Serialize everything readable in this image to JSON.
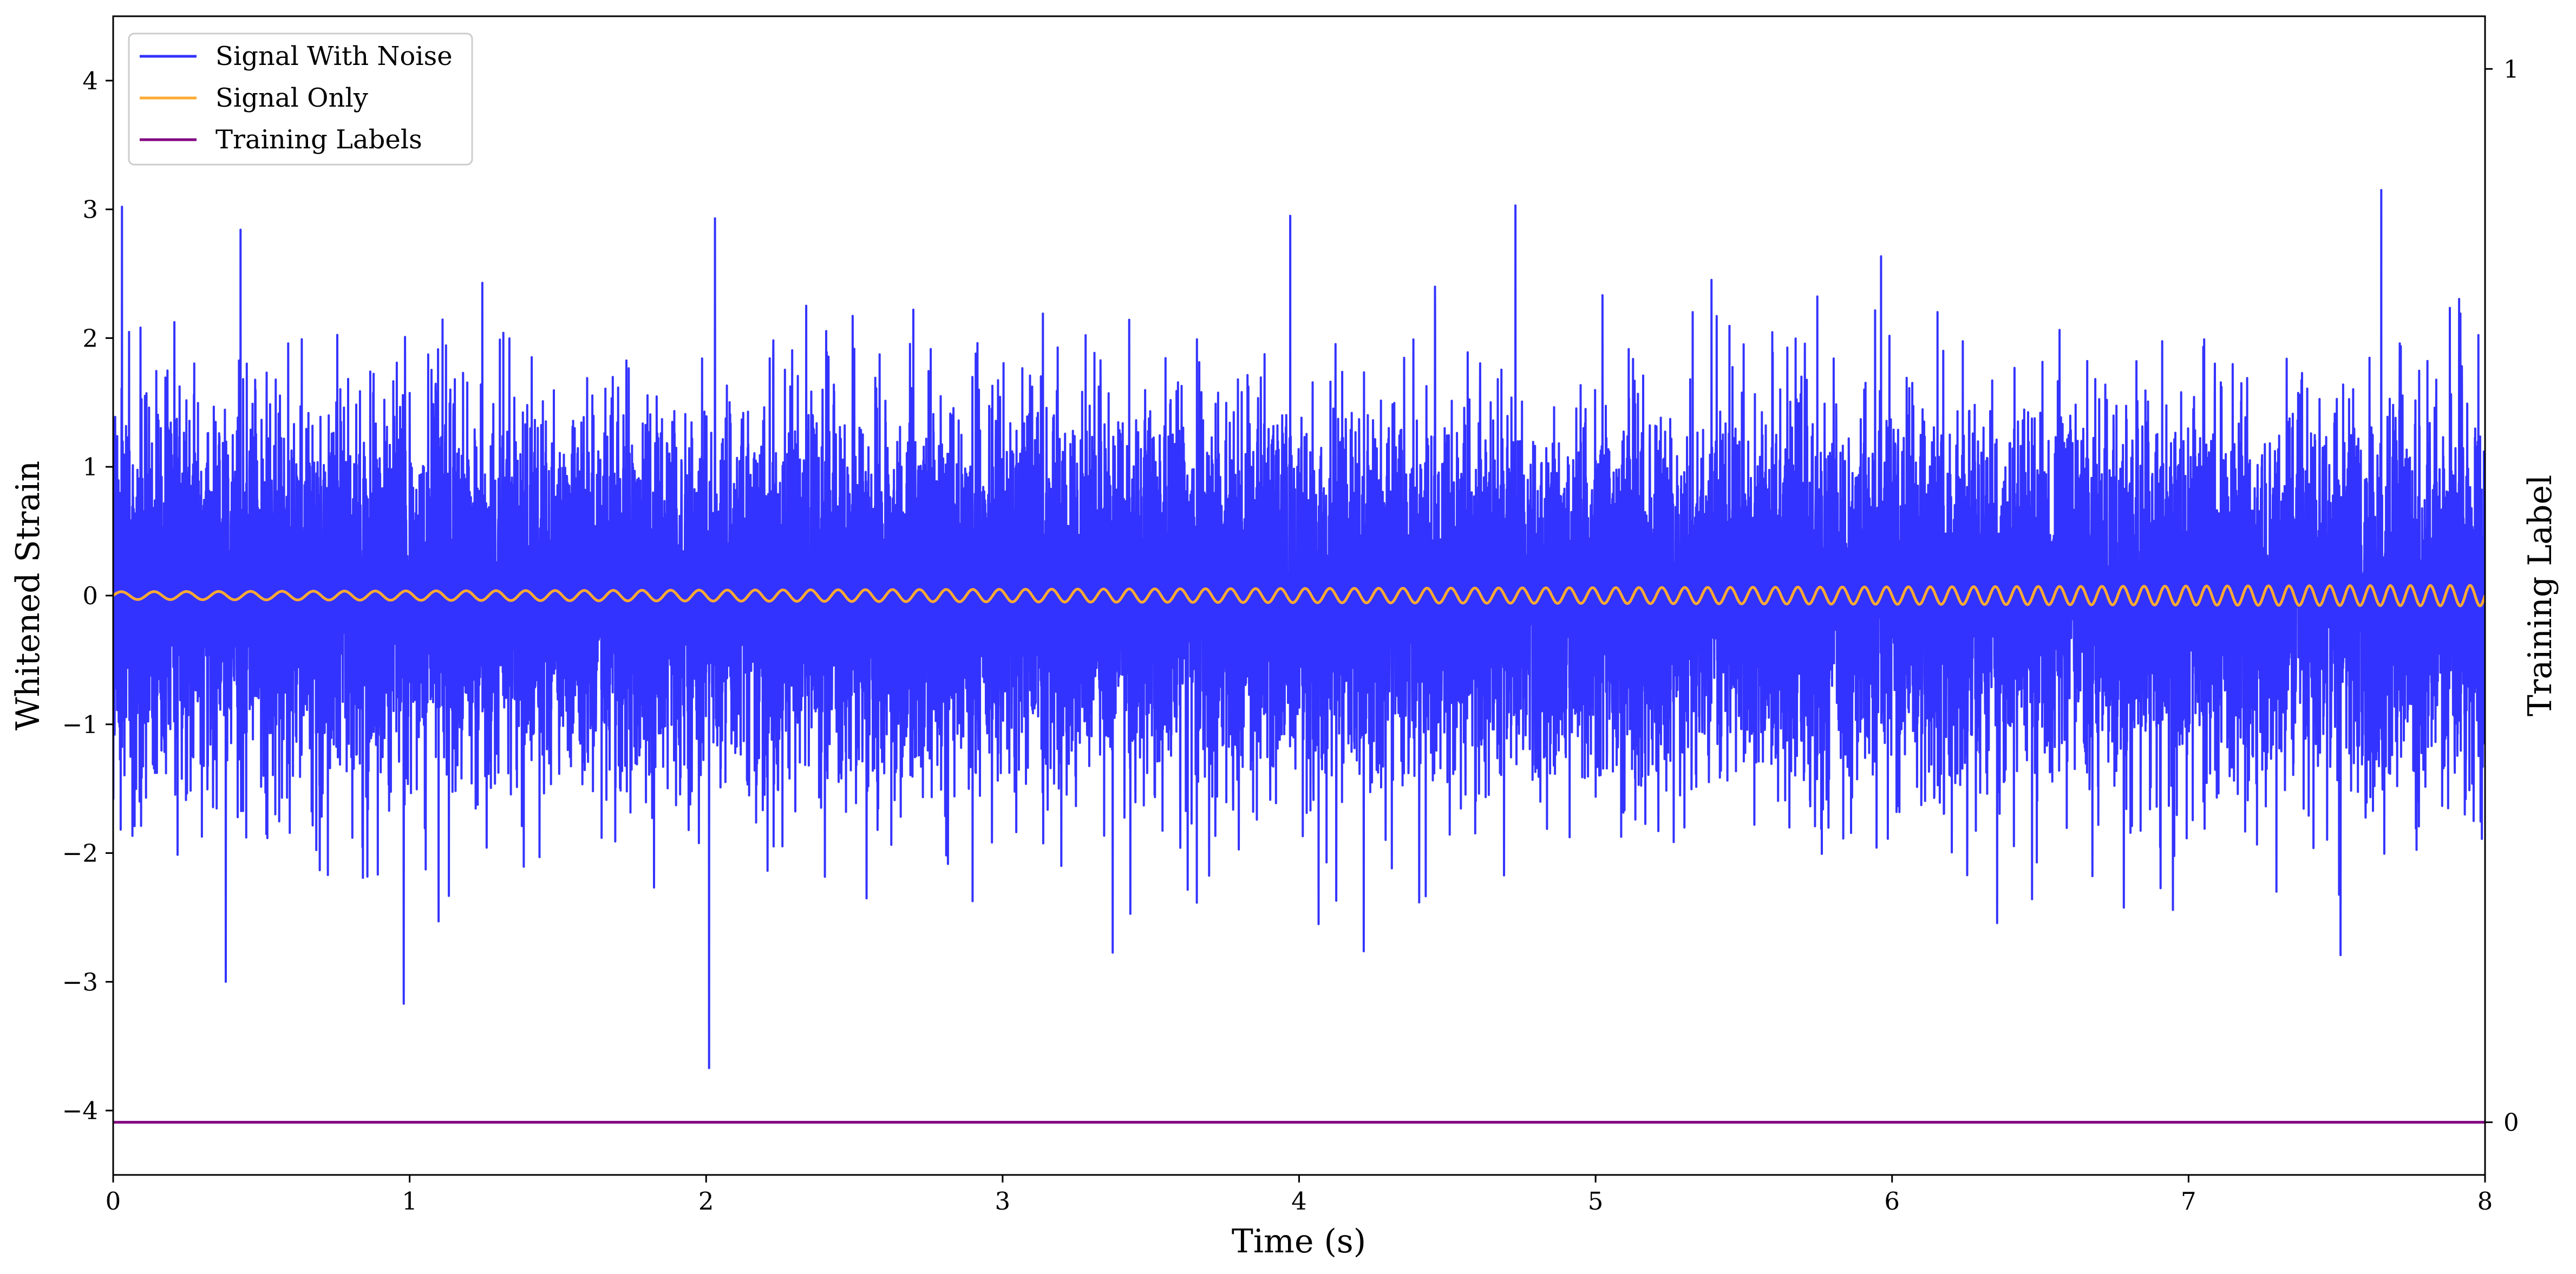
{
  "chart_data": {
    "type": "line",
    "xlabel": "Time (s)",
    "ylabel": "Whitened Strain",
    "y2label": "Training Label",
    "xlim": [
      0,
      8
    ],
    "ylim": [
      -4.5,
      4.5
    ],
    "y2lim": [
      -0.05,
      1.05
    ],
    "x_ticks": [
      0,
      1,
      2,
      3,
      4,
      5,
      6,
      7,
      8
    ],
    "x_tick_labels": [
      "0",
      "1",
      "2",
      "3",
      "4",
      "5",
      "6",
      "7",
      "8"
    ],
    "y_ticks": [
      -4,
      -3,
      -2,
      -1,
      0,
      1,
      2,
      3,
      4
    ],
    "y_tick_labels": [
      "−4",
      "−3",
      "−2",
      "−1",
      "0",
      "1",
      "2",
      "3",
      "4"
    ],
    "y2_ticks": [
      0,
      1
    ],
    "y2_tick_labels": [
      "0",
      "1"
    ],
    "grid": false,
    "legend_position": "upper-left",
    "series": [
      {
        "name": "Signal With Noise",
        "color": "#3333ff",
        "axis": "left",
        "kind": "noise",
        "sigma": 0.7,
        "range_approx": [
          -3.67,
          3.15
        ],
        "notable_extremes": [
          {
            "x": 0.03,
            "y": 3.02
          },
          {
            "x": 0.38,
            "y": -3.0
          },
          {
            "x": 0.98,
            "y": -3.17
          },
          {
            "x": 2.01,
            "y": -3.67
          },
          {
            "x": 2.03,
            "y": 2.93
          },
          {
            "x": 3.97,
            "y": 2.95
          },
          {
            "x": 4.73,
            "y": 3.03
          },
          {
            "x": 7.65,
            "y": 3.15
          }
        ]
      },
      {
        "name": "Signal Only",
        "color": "#ffaa33",
        "axis": "left",
        "kind": "chirp",
        "amplitude_start": 0.03,
        "amplitude_end": 0.08,
        "frequency_start_hz": 9,
        "frequency_end_hz": 15
      },
      {
        "name": "Training Labels",
        "color": "#800080",
        "axis": "right",
        "kind": "constant",
        "x": [
          0,
          8
        ],
        "y": [
          0,
          0
        ]
      }
    ]
  }
}
